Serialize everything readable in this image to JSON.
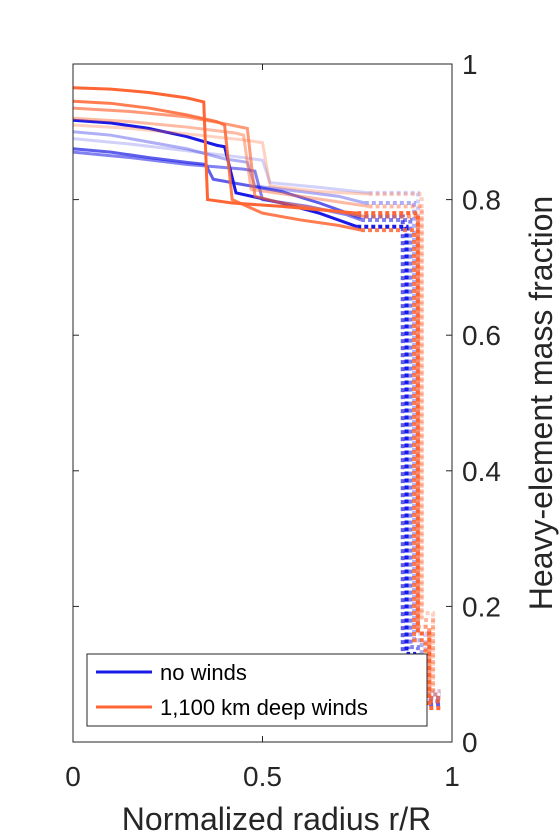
{
  "chart_data": {
    "type": "line",
    "title": "",
    "xlabel": "Normalized radius r/R",
    "ylabel": "Heavy-element mass fraction",
    "xlim": [
      0,
      1
    ],
    "ylim": [
      0,
      1
    ],
    "x_ticks": [
      "0",
      "0.5",
      "1"
    ],
    "y_ticks": [
      "0",
      "0.2",
      "0.4",
      "0.6",
      "0.8",
      "1"
    ],
    "y_axis_side": "right",
    "grid": false,
    "legend": {
      "location": "bottom-left",
      "entries": [
        {
          "label": "no winds",
          "color": "#1a1ae6"
        },
        {
          "label": "1,100 km deep winds",
          "color": "#ff6633"
        }
      ]
    },
    "series": [
      {
        "group": "no winds",
        "color": "#1a1ae6",
        "opacity": 1.0,
        "solid": [
          [
            0,
            0.917
          ],
          [
            0.1,
            0.913
          ],
          [
            0.2,
            0.905
          ],
          [
            0.3,
            0.893
          ],
          [
            0.38,
            0.88
          ],
          [
            0.4,
            0.878
          ],
          [
            0.43,
            0.81
          ],
          [
            0.55,
            0.795
          ],
          [
            0.65,
            0.78
          ],
          [
            0.75,
            0.76
          ]
        ],
        "dotted": [
          [
            0.75,
            0.76
          ],
          [
            0.88,
            0.76
          ],
          [
            0.88,
            0.13
          ],
          [
            0.9,
            0.13
          ],
          [
            0.9,
            0.06
          ],
          [
            0.97,
            0.06
          ]
        ]
      },
      {
        "group": "no winds",
        "color": "#1a1ae6",
        "opacity": 0.7,
        "solid": [
          [
            0,
            0.875
          ],
          [
            0.1,
            0.87
          ],
          [
            0.2,
            0.862
          ],
          [
            0.3,
            0.855
          ],
          [
            0.35,
            0.852
          ],
          [
            0.37,
            0.83
          ],
          [
            0.55,
            0.812
          ],
          [
            0.65,
            0.795
          ],
          [
            0.75,
            0.775
          ]
        ],
        "dotted": [
          [
            0.75,
            0.775
          ],
          [
            0.87,
            0.775
          ],
          [
            0.87,
            0.12
          ],
          [
            0.89,
            0.12
          ],
          [
            0.89,
            0.055
          ],
          [
            0.97,
            0.055
          ]
        ]
      },
      {
        "group": "no winds",
        "color": "#1a1ae6",
        "opacity": 0.55,
        "solid": [
          [
            0,
            0.87
          ],
          [
            0.15,
            0.862
          ],
          [
            0.3,
            0.852
          ],
          [
            0.45,
            0.845
          ],
          [
            0.48,
            0.842
          ],
          [
            0.5,
            0.8
          ],
          [
            0.62,
            0.79
          ],
          [
            0.72,
            0.778
          ],
          [
            0.76,
            0.77
          ]
        ],
        "dotted": [
          [
            0.76,
            0.77
          ],
          [
            0.89,
            0.77
          ],
          [
            0.89,
            0.14
          ],
          [
            0.91,
            0.14
          ],
          [
            0.91,
            0.065
          ],
          [
            0.97,
            0.065
          ]
        ]
      },
      {
        "group": "no winds",
        "color": "#1a1ae6",
        "opacity": 0.35,
        "solid": [
          [
            0,
            0.9
          ],
          [
            0.1,
            0.895
          ],
          [
            0.2,
            0.885
          ],
          [
            0.3,
            0.875
          ],
          [
            0.4,
            0.86
          ],
          [
            0.46,
            0.855
          ],
          [
            0.48,
            0.82
          ],
          [
            0.6,
            0.812
          ],
          [
            0.7,
            0.805
          ],
          [
            0.77,
            0.795
          ]
        ],
        "dotted": [
          [
            0.77,
            0.795
          ],
          [
            0.9,
            0.795
          ],
          [
            0.9,
            0.15
          ],
          [
            0.92,
            0.15
          ],
          [
            0.92,
            0.07
          ],
          [
            0.97,
            0.07
          ]
        ]
      },
      {
        "group": "no winds",
        "color": "#1a1ae6",
        "opacity": 0.2,
        "solid": [
          [
            0,
            0.89
          ],
          [
            0.15,
            0.882
          ],
          [
            0.3,
            0.872
          ],
          [
            0.45,
            0.862
          ],
          [
            0.5,
            0.858
          ],
          [
            0.52,
            0.825
          ],
          [
            0.65,
            0.818
          ],
          [
            0.78,
            0.81
          ]
        ],
        "dotted": [
          [
            0.78,
            0.81
          ],
          [
            0.91,
            0.81
          ],
          [
            0.91,
            0.16
          ],
          [
            0.93,
            0.16
          ],
          [
            0.93,
            0.075
          ],
          [
            0.97,
            0.075
          ]
        ]
      },
      {
        "group": "1,100 km deep winds",
        "color": "#ff6633",
        "opacity": 1.0,
        "solid": [
          [
            0,
            0.965
          ],
          [
            0.1,
            0.963
          ],
          [
            0.2,
            0.958
          ],
          [
            0.3,
            0.95
          ],
          [
            0.345,
            0.944
          ],
          [
            0.355,
            0.8
          ],
          [
            0.42,
            0.795
          ],
          [
            0.55,
            0.79
          ],
          [
            0.65,
            0.785
          ],
          [
            0.75,
            0.78
          ]
        ],
        "dotted": [
          [
            0.75,
            0.78
          ],
          [
            0.91,
            0.78
          ],
          [
            0.91,
            0.16
          ],
          [
            0.94,
            0.16
          ],
          [
            0.94,
            0.05
          ],
          [
            0.97,
            0.05
          ]
        ]
      },
      {
        "group": "1,100 km deep winds",
        "color": "#ff6633",
        "opacity": 0.85,
        "solid": [
          [
            0,
            0.945
          ],
          [
            0.1,
            0.942
          ],
          [
            0.2,
            0.935
          ],
          [
            0.3,
            0.925
          ],
          [
            0.38,
            0.915
          ],
          [
            0.4,
            0.91
          ],
          [
            0.42,
            0.8
          ],
          [
            0.5,
            0.78
          ],
          [
            0.6,
            0.77
          ],
          [
            0.7,
            0.762
          ],
          [
            0.76,
            0.755
          ]
        ],
        "dotted": [
          [
            0.76,
            0.755
          ],
          [
            0.9,
            0.755
          ],
          [
            0.9,
            0.15
          ],
          [
            0.93,
            0.15
          ],
          [
            0.93,
            0.06
          ],
          [
            0.97,
            0.06
          ]
        ]
      },
      {
        "group": "1,100 km deep winds",
        "color": "#ff6633",
        "opacity": 0.65,
        "solid": [
          [
            0,
            0.935
          ],
          [
            0.15,
            0.93
          ],
          [
            0.3,
            0.922
          ],
          [
            0.4,
            0.912
          ],
          [
            0.46,
            0.905
          ],
          [
            0.48,
            0.805
          ],
          [
            0.55,
            0.795
          ],
          [
            0.7,
            0.782
          ],
          [
            0.77,
            0.775
          ]
        ],
        "dotted": [
          [
            0.77,
            0.775
          ],
          [
            0.91,
            0.775
          ],
          [
            0.91,
            0.17
          ],
          [
            0.94,
            0.17
          ],
          [
            0.94,
            0.065
          ],
          [
            0.97,
            0.065
          ]
        ]
      },
      {
        "group": "1,100 km deep winds",
        "color": "#ff6633",
        "opacity": 0.45,
        "solid": [
          [
            0,
            0.92
          ],
          [
            0.15,
            0.915
          ],
          [
            0.3,
            0.907
          ],
          [
            0.43,
            0.898
          ],
          [
            0.45,
            0.895
          ],
          [
            0.47,
            0.815
          ],
          [
            0.6,
            0.805
          ],
          [
            0.72,
            0.795
          ],
          [
            0.78,
            0.79
          ]
        ],
        "dotted": [
          [
            0.78,
            0.79
          ],
          [
            0.92,
            0.79
          ],
          [
            0.92,
            0.18
          ],
          [
            0.95,
            0.18
          ],
          [
            0.95,
            0.07
          ],
          [
            0.97,
            0.07
          ]
        ]
      },
      {
        "group": "1,100 km deep winds",
        "color": "#ff6633",
        "opacity": 0.3,
        "solid": [
          [
            0,
            0.91
          ],
          [
            0.15,
            0.905
          ],
          [
            0.3,
            0.897
          ],
          [
            0.45,
            0.888
          ],
          [
            0.5,
            0.884
          ],
          [
            0.52,
            0.82
          ],
          [
            0.65,
            0.812
          ],
          [
            0.78,
            0.808
          ]
        ],
        "dotted": [
          [
            0.78,
            0.808
          ],
          [
            0.92,
            0.808
          ],
          [
            0.92,
            0.19
          ],
          [
            0.95,
            0.19
          ],
          [
            0.95,
            0.075
          ],
          [
            0.97,
            0.075
          ]
        ]
      }
    ]
  }
}
